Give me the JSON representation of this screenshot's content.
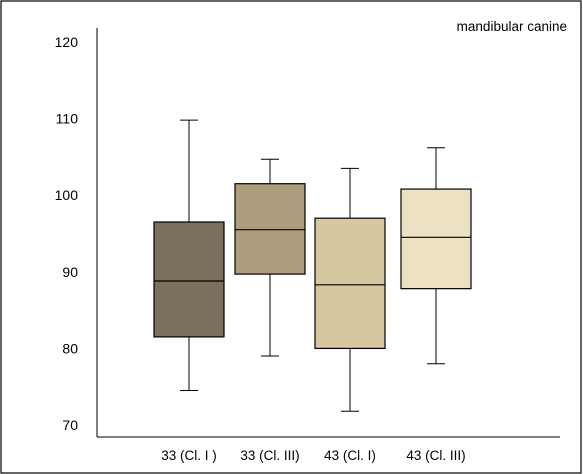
{
  "chart_data": {
    "type": "boxplot",
    "title": "mandibular canine",
    "xlabel": "",
    "ylabel": "",
    "ylim": [
      68,
      124
    ],
    "yticks": [
      70,
      80,
      90,
      100,
      110,
      120
    ],
    "grid": false,
    "categories": [
      "33 (Cl. I )",
      "33 (Cl. III)",
      "43 (Cl. I)",
      "43 (Cl. III)"
    ],
    "boxes": [
      {
        "category": "33 (Cl. I )",
        "min": 74.5,
        "q1": 81.5,
        "median": 88.8,
        "q3": 96.5,
        "max": 109.8,
        "color": "#7b705d"
      },
      {
        "category": "33 (Cl. III)",
        "min": 79.0,
        "q1": 89.7,
        "median": 95.5,
        "q3": 101.5,
        "max": 104.7,
        "color": "#ae9d7d"
      },
      {
        "category": "43 (Cl. I)",
        "min": 71.8,
        "q1": 80.0,
        "median": 88.3,
        "q3": 97.0,
        "max": 103.5,
        "color": "#d6c7a1"
      },
      {
        "category": "43 (Cl. III)",
        "min": 78.0,
        "q1": 87.8,
        "median": 94.5,
        "q3": 100.8,
        "max": 106.2,
        "color": "#ece1c2"
      }
    ]
  }
}
